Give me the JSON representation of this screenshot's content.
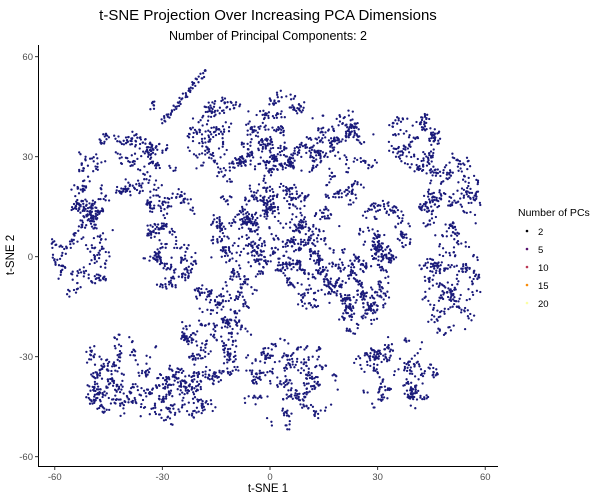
{
  "chart_data": {
    "type": "scatter",
    "title": "t-SNE Projection Over Increasing PCA Dimensions",
    "subtitle": "Number of Principal Components: 2",
    "xlabel": "t-SNE 1",
    "ylabel": "t-SNE 2",
    "xlim": [
      -63,
      63
    ],
    "ylim": [
      -61,
      62
    ],
    "xticks": [
      -60,
      -30,
      0,
      30,
      60
    ],
    "yticks": [
      60,
      30,
      0,
      -30,
      -60
    ],
    "grid": false,
    "point_color": "#1a1a7a",
    "legend": {
      "title": "Number of PCs",
      "placement": "right",
      "entries": [
        {
          "label": "2",
          "color": "#000004"
        },
        {
          "label": "5",
          "color": "#56106e"
        },
        {
          "label": "10",
          "color": "#bb3754"
        },
        {
          "label": "15",
          "color": "#f98c0a"
        },
        {
          "label": "20",
          "color": "#fcffa4"
        }
      ]
    },
    "series": [
      {
        "clusters": [
          {
            "cx": -52,
            "cy": 5,
            "rx": 9,
            "ry": 20,
            "n": 260
          },
          {
            "cx": -40,
            "cy": -36,
            "rx": 14,
            "ry": 13,
            "n": 300
          },
          {
            "cx": -40,
            "cy": 28,
            "rx": 14,
            "ry": 10,
            "n": 230
          },
          {
            "cx": -28,
            "cy": 6,
            "rx": 9,
            "ry": 16,
            "n": 260
          },
          {
            "cx": -24,
            "cy": -42,
            "rx": 10,
            "ry": 9,
            "n": 200
          },
          {
            "cx": -15,
            "cy": -22,
            "rx": 10,
            "ry": 16,
            "n": 300
          },
          {
            "cx": -13,
            "cy": 35,
            "rx": 10,
            "ry": 13,
            "n": 250
          },
          {
            "cx": -8,
            "cy": 5,
            "rx": 9,
            "ry": 18,
            "n": 300
          },
          {
            "cx": 2,
            "cy": 15,
            "rx": 9,
            "ry": 22,
            "n": 320
          },
          {
            "cx": 3,
            "cy": 38,
            "rx": 10,
            "ry": 12,
            "n": 220
          },
          {
            "cx": 5,
            "cy": -38,
            "rx": 14,
            "ry": 14,
            "n": 300
          },
          {
            "cx": 12,
            "cy": 0,
            "rx": 10,
            "ry": 16,
            "n": 300
          },
          {
            "cx": 20,
            "cy": 30,
            "rx": 10,
            "ry": 15,
            "n": 260
          },
          {
            "cx": 25,
            "cy": -10,
            "rx": 9,
            "ry": 15,
            "n": 260
          },
          {
            "cx": 32,
            "cy": 8,
            "rx": 8,
            "ry": 10,
            "n": 180
          },
          {
            "cx": 35,
            "cy": -35,
            "rx": 12,
            "ry": 12,
            "n": 240
          },
          {
            "cx": 40,
            "cy": 35,
            "rx": 8,
            "ry": 10,
            "n": 170
          },
          {
            "cx": 50,
            "cy": 18,
            "rx": 9,
            "ry": 14,
            "n": 230
          },
          {
            "cx": 50,
            "cy": -8,
            "rx": 9,
            "ry": 16,
            "n": 240
          },
          {
            "cx": -32,
            "cy": 45,
            "rx": 2,
            "ry": 2,
            "n": 8
          }
        ],
        "strands": [
          {
            "from": [
              -30,
              40
            ],
            "to": [
              -18,
              56
            ],
            "n": 55
          },
          {
            "from": [
              -58,
              0
            ],
            "to": [
              -48,
              18
            ],
            "n": 40
          }
        ]
      }
    ]
  }
}
